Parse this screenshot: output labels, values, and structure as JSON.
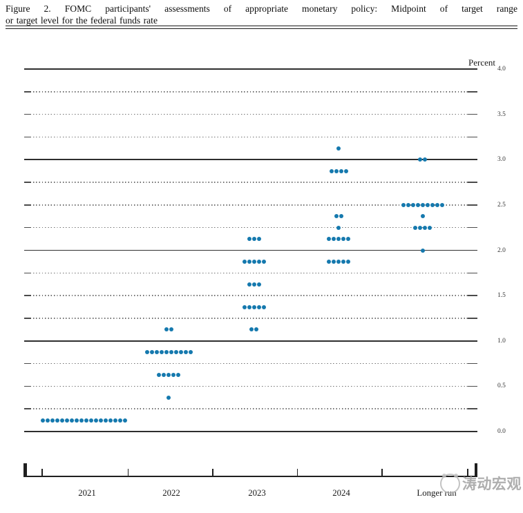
{
  "figure": {
    "title_line1": "Figure 2.  FOMC participants' assessments of appropriate monetary policy:  Midpoint of target range",
    "title_line2": "or target level for the federal funds rate"
  },
  "watermark": {
    "text": "涛动宏观",
    "logo": "panda-circle-logo"
  },
  "chart_data": {
    "type": "scatter",
    "subtype": "fomc-dot-plot",
    "title": "FOMC participants' assessments of appropriate monetary policy: Midpoint of target range or target level for the federal funds rate",
    "ylabel": "Percent",
    "xlabel": "",
    "ylim": [
      0.0,
      4.0
    ],
    "grid": true,
    "gridline_interval": 0.25,
    "solid_gridline_values": [
      0.0,
      1.0,
      2.0,
      3.0,
      4.0
    ],
    "ytick_interval": 0.5,
    "ytick_labels": [
      "4.0",
      "3.5",
      "3.0",
      "2.5",
      "2.0",
      "1.5",
      "1.0",
      "0.5",
      "0.0"
    ],
    "legend_position": "none",
    "dot_color": "#1579ae",
    "categories": [
      "2021",
      "2022",
      "2023",
      "2024",
      "Longer run"
    ],
    "distributions": [
      {
        "category": "2021",
        "dots": [
          {
            "rate": 0.125,
            "count": 18
          }
        ]
      },
      {
        "category": "2022",
        "dots": [
          {
            "rate": 0.375,
            "count": 1
          },
          {
            "rate": 0.625,
            "count": 5
          },
          {
            "rate": 0.875,
            "count": 10
          },
          {
            "rate": 1.125,
            "count": 2
          }
        ]
      },
      {
        "category": "2023",
        "dots": [
          {
            "rate": 1.125,
            "count": 2
          },
          {
            "rate": 1.375,
            "count": 5
          },
          {
            "rate": 1.625,
            "count": 3
          },
          {
            "rate": 1.875,
            "count": 5
          },
          {
            "rate": 2.125,
            "count": 3
          }
        ]
      },
      {
        "category": "2024",
        "dots": [
          {
            "rate": 1.875,
            "count": 5
          },
          {
            "rate": 2.125,
            "count": 5
          },
          {
            "rate": 2.25,
            "count": 1
          },
          {
            "rate": 2.375,
            "count": 2
          },
          {
            "rate": 2.875,
            "count": 4
          },
          {
            "rate": 3.125,
            "count": 1
          }
        ]
      },
      {
        "category": "Longer run",
        "dots": [
          {
            "rate": 2.0,
            "count": 1
          },
          {
            "rate": 2.25,
            "count": 4
          },
          {
            "rate": 2.375,
            "count": 1
          },
          {
            "rate": 2.5,
            "count": 9
          },
          {
            "rate": 3.0,
            "count": 2
          }
        ]
      }
    ]
  }
}
